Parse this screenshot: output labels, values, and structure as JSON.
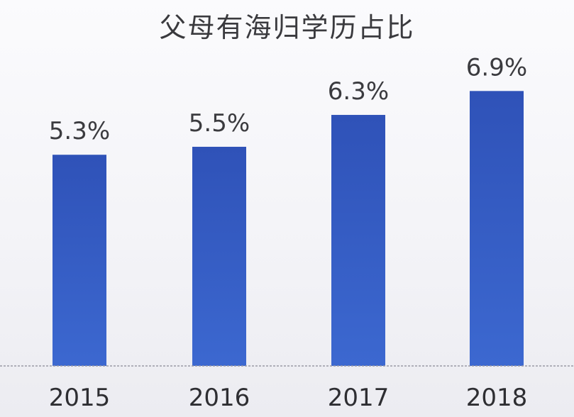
{
  "chart_data": {
    "type": "bar",
    "title": "父母有海归学历占比",
    "xlabel": "",
    "ylabel": "",
    "categories": [
      "2015",
      "2016",
      "2017",
      "2018"
    ],
    "values": [
      5.3,
      5.5,
      6.3,
      6.9
    ],
    "value_labels": [
      "5.3%",
      "5.5%",
      "6.3%",
      "6.9%"
    ],
    "ylim": [
      0,
      7.76
    ],
    "grid": false,
    "colors": {
      "bar_top": "#2f52b8",
      "bar_bottom": "#3c68d0",
      "baseline": "#9a9aa6"
    }
  }
}
